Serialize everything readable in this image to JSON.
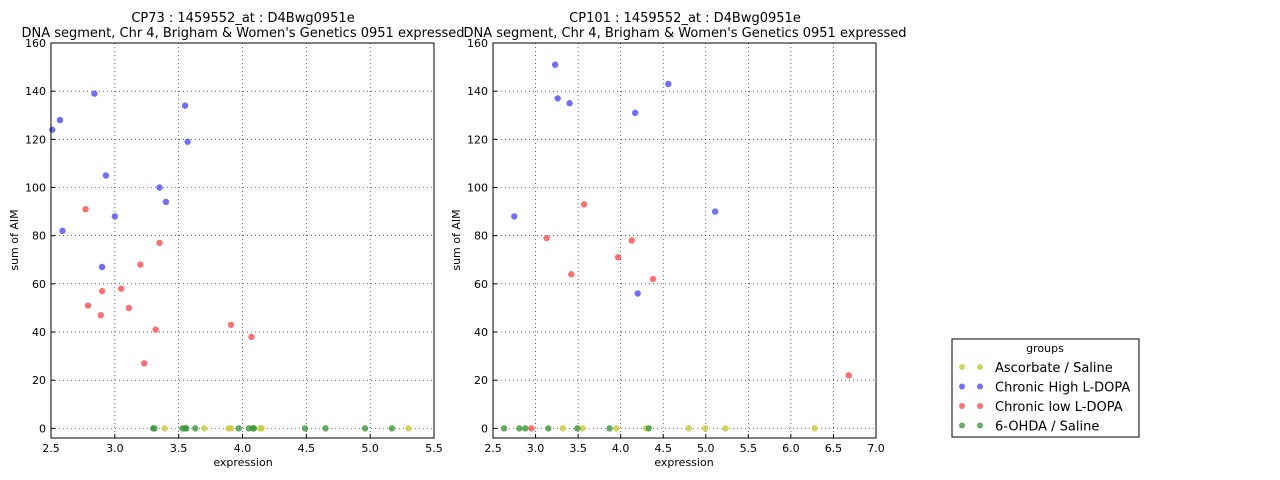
{
  "chart_data": [
    {
      "type": "scatter",
      "title": "CP73 : 1459552_at : D4Bwg0951e",
      "subtitle": "DNA segment, Chr 4, Brigham & Women's Genetics 0951 expressed",
      "xlabel": "expression",
      "ylabel": "sum of AIM",
      "xlim": [
        2.5,
        5.5
      ],
      "ylim": [
        -4,
        160
      ],
      "xticks": [
        "2.5",
        "3.0",
        "3.5",
        "4.0",
        "4.5",
        "5.0",
        "5.5"
      ],
      "yticks": [
        "0",
        "20",
        "40",
        "60",
        "80",
        "100",
        "120",
        "140",
        "160"
      ],
      "grid": true,
      "series": [
        {
          "name": "Ascorbate / Saline",
          "color": "#c9c93a",
          "x": [
            3.39,
            3.7,
            3.89,
            3.91,
            4.14,
            4.15,
            5.3
          ],
          "y": [
            0,
            0,
            0,
            0,
            0,
            0,
            0
          ]
        },
        {
          "name": "Chronic High L-DOPA",
          "color": "#4b4bff",
          "x": [
            2.51,
            2.57,
            2.59,
            2.84,
            2.9,
            2.93,
            3.0,
            3.35,
            3.4,
            3.55,
            3.57
          ],
          "y": [
            124,
            128,
            82,
            139,
            67,
            105,
            88,
            100,
            94,
            134,
            119
          ]
        },
        {
          "name": "Chronic low L-DOPA",
          "color": "#ff4b4b",
          "x": [
            2.77,
            2.79,
            2.89,
            2.9,
            3.05,
            3.11,
            3.2,
            3.23,
            3.32,
            3.35,
            3.91,
            4.07
          ],
          "y": [
            91,
            51,
            47,
            57,
            58,
            50,
            68,
            27,
            41,
            77,
            43,
            38
          ]
        },
        {
          "name": "6-OHDA / Saline",
          "color": "#3a9a3a",
          "x": [
            3.3,
            3.31,
            3.53,
            3.55,
            3.56,
            3.63,
            3.97,
            4.05,
            4.08,
            4.09,
            4.49,
            4.65,
            4.96,
            5.17
          ],
          "y": [
            0,
            0,
            0,
            0,
            0,
            0,
            0,
            0,
            0,
            0,
            0,
            0,
            0,
            0
          ]
        }
      ]
    },
    {
      "type": "scatter",
      "title": "CP101 : 1459552_at : D4Bwg0951e",
      "subtitle": "DNA segment, Chr 4, Brigham & Women's Genetics 0951 expressed",
      "xlabel": "expression",
      "ylabel": "sum of AIM",
      "xlim": [
        2.5,
        7.0
      ],
      "ylim": [
        -4,
        160
      ],
      "xticks": [
        "2.5",
        "3.0",
        "3.5",
        "4.0",
        "4.5",
        "5.0",
        "5.5",
        "6.0",
        "6.5",
        "7.0"
      ],
      "yticks": [
        "0",
        "20",
        "40",
        "60",
        "80",
        "100",
        "120",
        "140",
        "160"
      ],
      "grid": true,
      "series": [
        {
          "name": "Ascorbate / Saline",
          "color": "#c9c93a",
          "x": [
            3.32,
            3.55,
            3.95,
            4.3,
            4.8,
            4.99,
            5.23,
            6.28
          ],
          "y": [
            0,
            0,
            0,
            0,
            0,
            0,
            0,
            0
          ]
        },
        {
          "name": "Chronic High L-DOPA",
          "color": "#4b4bff",
          "x": [
            2.75,
            3.23,
            3.26,
            3.4,
            4.17,
            4.2,
            4.56,
            5.11
          ],
          "y": [
            88,
            151,
            137,
            135,
            131,
            56,
            143,
            90
          ]
        },
        {
          "name": "Chronic low L-DOPA",
          "color": "#ff4b4b",
          "x": [
            2.95,
            3.13,
            3.42,
            3.57,
            3.97,
            4.13,
            4.38,
            6.68
          ],
          "y": [
            0,
            79,
            64,
            93,
            71,
            78,
            62,
            22
          ]
        },
        {
          "name": "6-OHDA / Saline",
          "color": "#3a9a3a",
          "x": [
            2.63,
            2.81,
            2.88,
            3.15,
            3.49,
            3.87,
            4.33
          ],
          "y": [
            0,
            0,
            0,
            0,
            0,
            0,
            0
          ]
        }
      ]
    }
  ],
  "legend": {
    "title": "groups",
    "placement": "lower-right outside",
    "entries": [
      {
        "label": "Ascorbate / Saline",
        "color": "#c9c93a"
      },
      {
        "label": "Chronic High L-DOPA",
        "color": "#4b4bff"
      },
      {
        "label": "Chronic low L-DOPA",
        "color": "#ff4b4b"
      },
      {
        "label": "6-OHDA / Saline",
        "color": "#3a9a3a"
      }
    ]
  }
}
